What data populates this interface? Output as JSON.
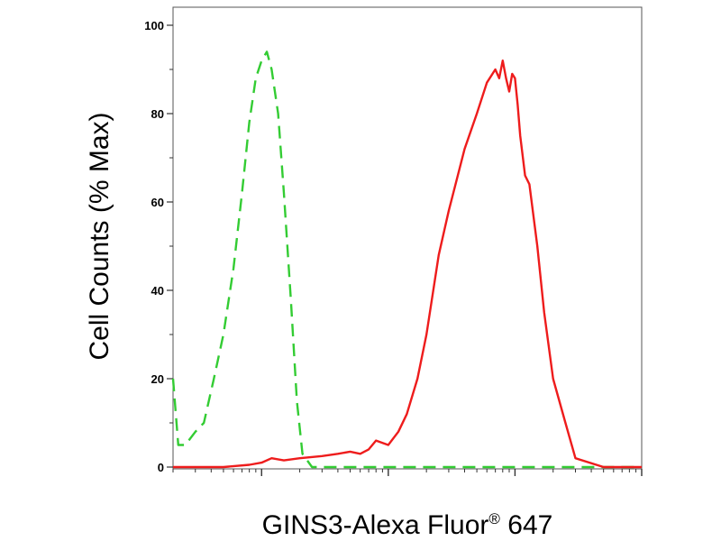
{
  "chart_data": {
    "type": "line",
    "xlabel": "GINS3-Alexa Fluor",
    "xlabel_superscript": "®",
    "xlabel_suffix": " 647",
    "ylabel": "Cell Counts (% Max)",
    "ylim": [
      0,
      100
    ],
    "yticks": [
      0,
      20,
      40,
      60,
      80,
      100
    ],
    "yticklabels": [
      "0",
      "20",
      "40",
      "60",
      "80",
      "100"
    ],
    "x_scale": "log",
    "xlim": [
      0.2,
      1000
    ],
    "xticklabels_shown": false,
    "grid": false,
    "legend": "none",
    "series": [
      {
        "style": "dashed",
        "color": "#33cc33",
        "x": [
          0.2,
          0.22,
          0.25,
          0.3,
          0.35,
          0.42,
          0.5,
          0.6,
          0.7,
          0.8,
          0.9,
          1.0,
          1.1,
          1.2,
          1.35,
          1.5,
          1.7,
          1.9,
          2.1,
          2.5,
          3.0,
          5,
          10,
          20,
          50,
          100,
          200,
          500,
          1000
        ],
        "y": [
          20,
          5,
          5,
          8,
          10,
          20,
          30,
          45,
          62,
          78,
          88,
          92,
          94,
          90,
          80,
          62,
          38,
          15,
          3,
          0,
          0,
          0,
          0,
          0,
          0,
          0,
          0,
          0,
          0
        ]
      },
      {
        "style": "solid",
        "color": "#ee1c1c",
        "x": [
          0.2,
          0.3,
          0.5,
          0.8,
          1.0,
          1.2,
          1.5,
          2.0,
          3.0,
          4.0,
          5.0,
          6.0,
          7.0,
          8.0,
          10,
          12,
          14,
          17,
          20,
          25,
          30,
          40,
          50,
          60,
          70,
          75,
          80,
          85,
          90,
          95,
          100,
          105,
          110,
          120,
          130,
          150,
          170,
          200,
          250,
          300,
          500,
          1000
        ],
        "y": [
          0,
          0,
          0,
          0.5,
          1,
          2,
          1.5,
          2,
          2.5,
          3,
          3.5,
          3,
          4,
          6,
          5,
          8,
          12,
          20,
          30,
          48,
          58,
          72,
          80,
          87,
          90,
          88,
          92,
          88,
          85,
          89,
          88,
          82,
          75,
          66,
          64,
          50,
          35,
          20,
          10,
          2,
          0,
          0
        ]
      }
    ]
  }
}
